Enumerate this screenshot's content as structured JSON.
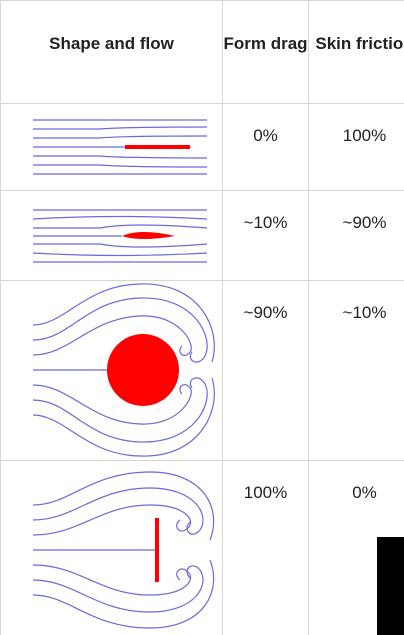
{
  "table": {
    "header": [
      "Shape and flow",
      "Form drag",
      "Skin friction"
    ],
    "rows": [
      {
        "form_drag": "0%",
        "skin_friction": "100%"
      },
      {
        "form_drag": "~10%",
        "skin_friction": "~90%"
      },
      {
        "form_drag": "~90%",
        "skin_friction": "~10%"
      },
      {
        "form_drag": "100%",
        "skin_friction": "0%"
      }
    ]
  }
}
